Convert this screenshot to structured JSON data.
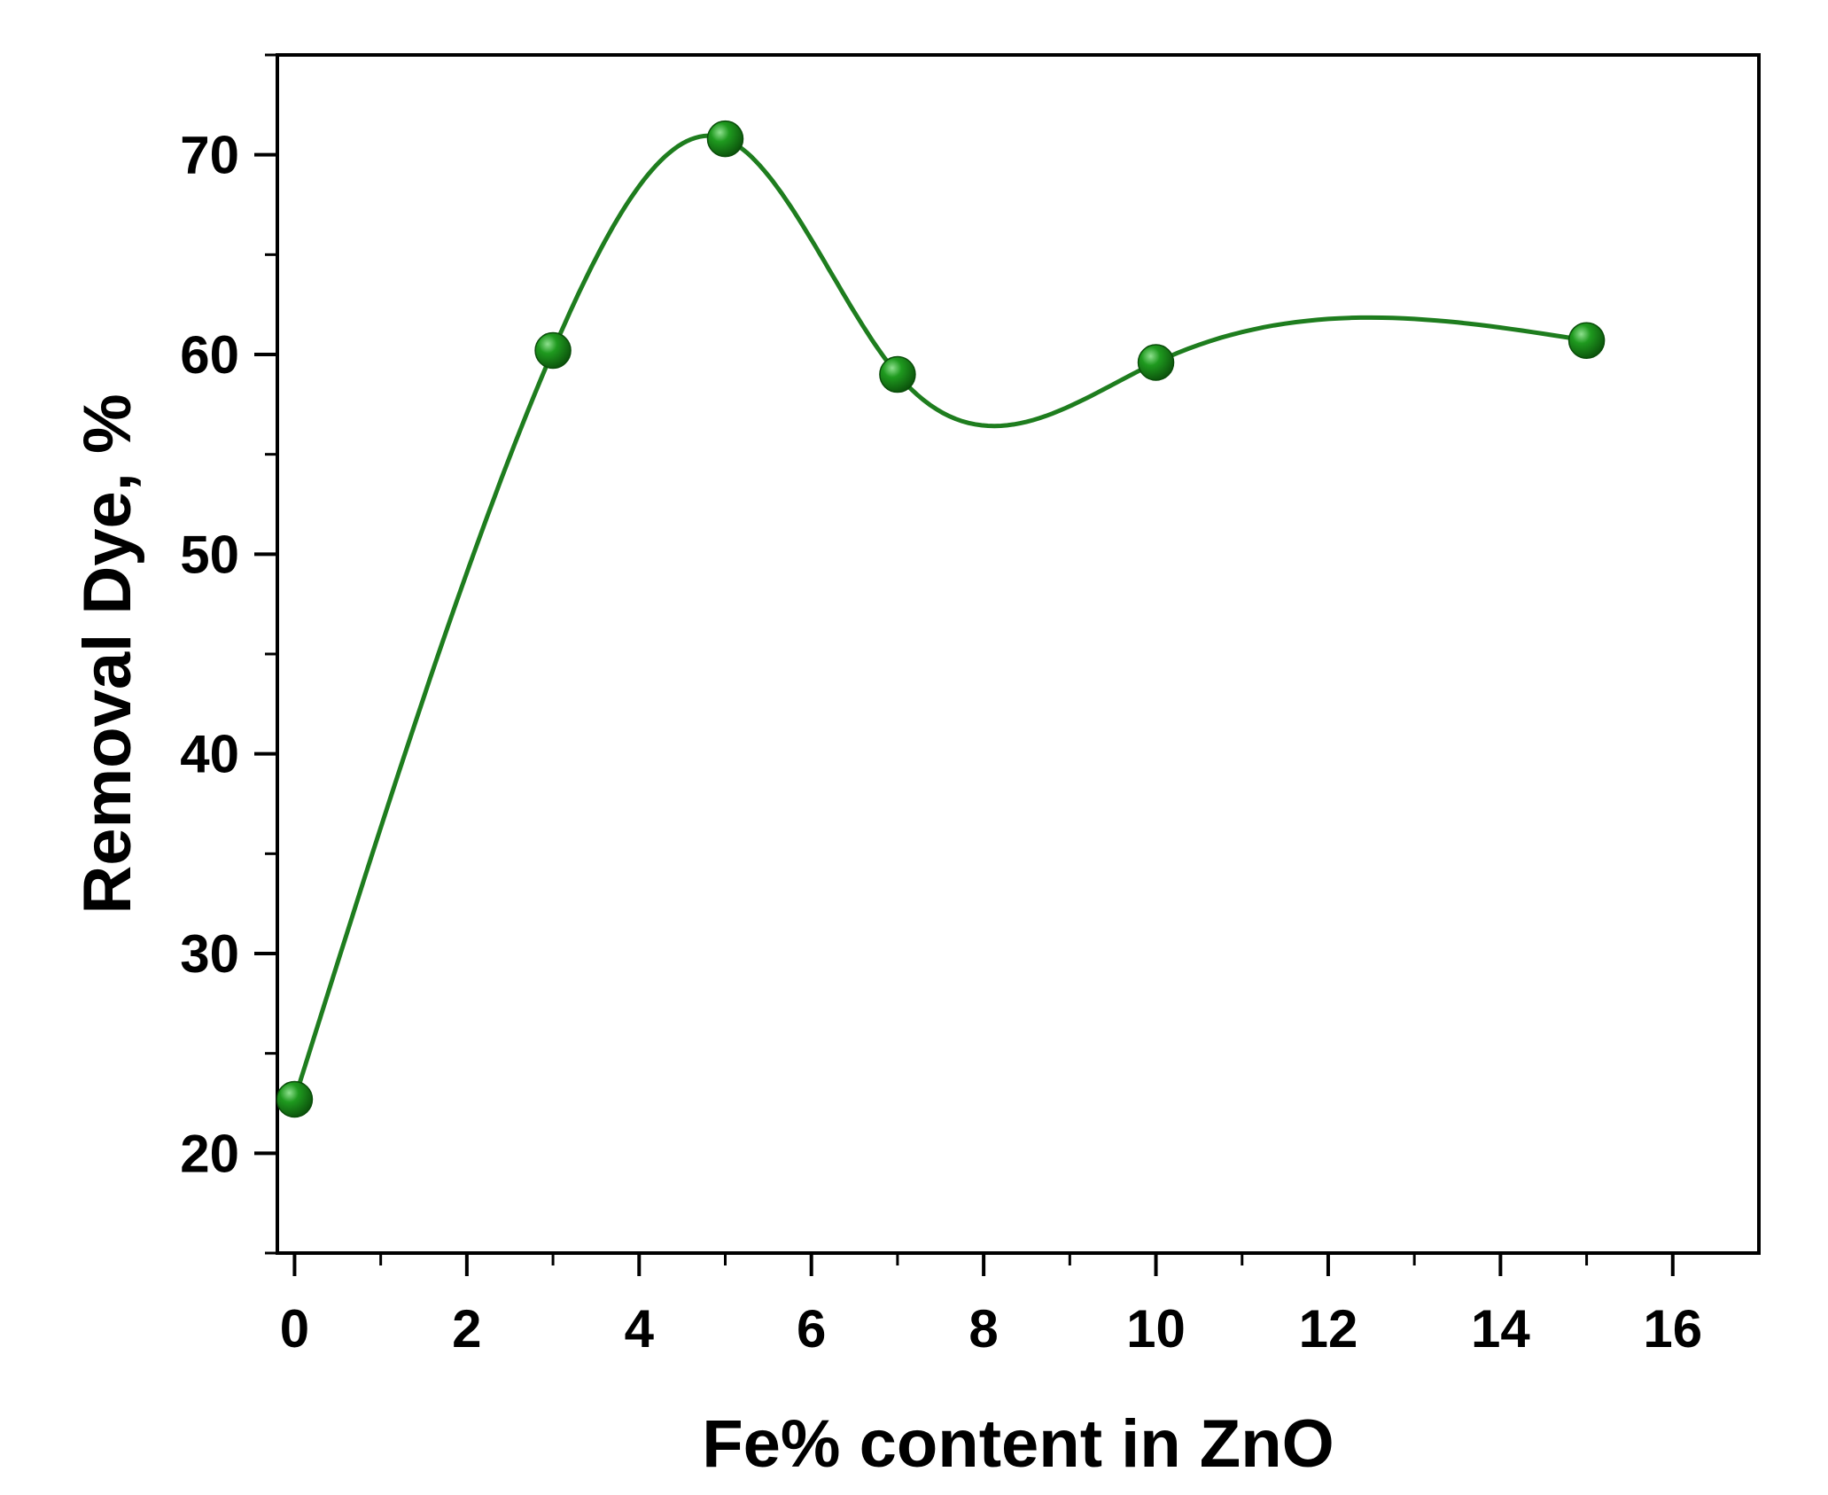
{
  "chart_data": {
    "type": "scatter",
    "xlabel": "Fe% content in ZnO",
    "ylabel": "Removal Dye, %",
    "xlim": [
      -0.2,
      17
    ],
    "ylim": [
      15,
      75
    ],
    "x_ticks": [
      "0",
      "2",
      "4",
      "6",
      "8",
      "10",
      "12",
      "14",
      "16"
    ],
    "y_ticks": [
      "20",
      "30",
      "40",
      "50",
      "60",
      "70"
    ],
    "x": [
      0,
      3,
      5,
      7,
      10,
      15
    ],
    "y": [
      22.7,
      60.2,
      70.8,
      59.0,
      59.6,
      60.7
    ],
    "smooth_line": true,
    "grid": false,
    "color": "#1e7d1e"
  }
}
